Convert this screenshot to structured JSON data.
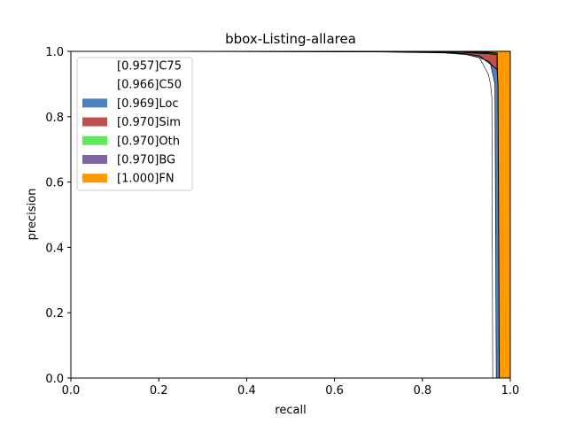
{
  "chart_data": {
    "type": "area",
    "title": "bbox-Listing-allarea",
    "xlabel": "recall",
    "ylabel": "precision",
    "xlim": [
      0,
      1
    ],
    "ylim": [
      0,
      1
    ],
    "x_ticks": [
      "0.0",
      "0.2",
      "0.4",
      "0.6",
      "0.8",
      "1.0"
    ],
    "y_ticks": [
      "0.0",
      "0.2",
      "0.4",
      "0.6",
      "0.8",
      "1.0"
    ],
    "grid": false,
    "legend_position": "upper-left",
    "legend": [
      {
        "label": "[0.957]C75",
        "color": "#ffffff"
      },
      {
        "label": "[0.966]C50",
        "color": "#ffffff"
      },
      {
        "label": "[0.969]Loc",
        "color": "#4f81c1"
      },
      {
        "label": "[0.970]Sim",
        "color": "#c0504d"
      },
      {
        "label": "[0.970]Oth",
        "color": "#5ee85e"
      },
      {
        "label": "[0.970]BG",
        "color": "#8064a2"
      },
      {
        "label": "[1.000]FN",
        "color": "#ff9900"
      }
    ],
    "series": [
      {
        "name": "[1.000]FN",
        "color": "#ff9900",
        "points": [
          [
            0.0,
            1.0
          ],
          [
            1.0,
            1.0
          ],
          [
            1.0,
            0.0
          ],
          [
            0.0,
            0.0
          ]
        ]
      },
      {
        "name": "[0.970]BG",
        "color": "#8064a2",
        "points": [
          [
            0.0,
            1.0
          ],
          [
            0.88,
            1.0
          ],
          [
            0.93,
            0.998
          ],
          [
            0.95,
            0.997
          ],
          [
            0.97,
            0.995
          ],
          [
            0.972,
            0.0
          ],
          [
            0.0,
            0.0
          ]
        ]
      },
      {
        "name": "[0.970]Oth",
        "color": "#5ee85e",
        "points": [
          [
            0.0,
            1.0
          ],
          [
            0.88,
            0.999
          ],
          [
            0.93,
            0.997
          ],
          [
            0.95,
            0.996
          ],
          [
            0.97,
            0.994
          ],
          [
            0.971,
            0.0
          ],
          [
            0.0,
            0.0
          ]
        ]
      },
      {
        "name": "[0.970]Sim",
        "color": "#c0504d",
        "points": [
          [
            0.0,
            1.0
          ],
          [
            0.88,
            0.998
          ],
          [
            0.93,
            0.994
          ],
          [
            0.95,
            0.993
          ],
          [
            0.97,
            0.99
          ],
          [
            0.971,
            0.0
          ],
          [
            0.0,
            0.0
          ]
        ]
      },
      {
        "name": "[0.969]Loc",
        "color": "#4f81c1",
        "points": [
          [
            0.0,
            1.0
          ],
          [
            0.72,
            0.998
          ],
          [
            0.87,
            0.996
          ],
          [
            0.9,
            0.992
          ],
          [
            0.93,
            0.986
          ],
          [
            0.94,
            0.975
          ],
          [
            0.95,
            0.97
          ],
          [
            0.96,
            0.955
          ],
          [
            0.97,
            0.945
          ],
          [
            0.972,
            0.9
          ],
          [
            0.975,
            0.0
          ],
          [
            0.0,
            0.0
          ]
        ]
      },
      {
        "name": "[0.966]C50",
        "color": "#ffffff",
        "points": [
          [
            0.0,
            1.0
          ],
          [
            0.72,
            0.995
          ],
          [
            0.86,
            0.99
          ],
          [
            0.88,
            0.985
          ],
          [
            0.92,
            0.985
          ],
          [
            0.94,
            0.975
          ],
          [
            0.955,
            0.96
          ],
          [
            0.96,
            0.93
          ],
          [
            0.965,
            0.9
          ],
          [
            0.968,
            0.0
          ],
          [
            0.0,
            0.0
          ]
        ]
      },
      {
        "name": "[0.957]C75",
        "color": "#ffffff",
        "points": [
          [
            0.0,
            1.0
          ],
          [
            0.7,
            0.998
          ],
          [
            0.85,
            0.995
          ],
          [
            0.9,
            0.99
          ],
          [
            0.93,
            0.98
          ],
          [
            0.95,
            0.93
          ],
          [
            0.955,
            0.9
          ],
          [
            0.958,
            0.86
          ],
          [
            0.96,
            0.0
          ],
          [
            0.0,
            0.0
          ]
        ]
      }
    ]
  }
}
